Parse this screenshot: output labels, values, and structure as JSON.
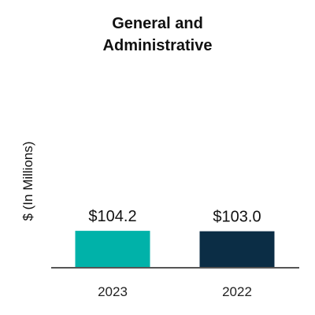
{
  "chart_data": {
    "type": "bar",
    "title_lines": [
      "General and",
      "Administrative"
    ],
    "title": "General and Administrative",
    "xlabel": "",
    "ylabel": "$ (In Millions)",
    "categories": [
      "2023",
      "2022"
    ],
    "values": [
      104.2,
      103.0
    ],
    "data_labels": [
      "$104.2",
      "$103.0"
    ],
    "colors": [
      "#00b2a9",
      "#0b2d45"
    ],
    "axis_color": "#555555",
    "grid": false,
    "legend": "none",
    "ylim": [
      0,
      400
    ]
  }
}
